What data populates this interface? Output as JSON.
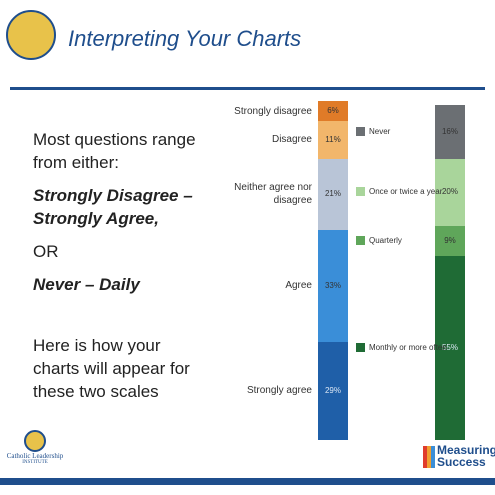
{
  "header": {
    "title": "Interpreting Your Charts"
  },
  "body": {
    "paragraphs": [
      "Most questions range from either:",
      "Strongly Disagree – Strongly Agree,",
      "OR",
      "Never – Daily",
      "Here is how your charts will appear for these two scales"
    ]
  },
  "logos": {
    "left": [
      "Catholic Leadership",
      "INSTITUTE"
    ],
    "right": [
      "Measuring",
      "Success"
    ]
  },
  "chart_data": [
    {
      "type": "stacked_bar",
      "legend": "side-labels",
      "series": [
        {
          "name": "Strongly disagree",
          "color": "#e07b28",
          "values": [
            6
          ],
          "value_labels": [
            "6%"
          ]
        },
        {
          "name": "Disagree",
          "color": "#f2b66b",
          "values": [
            11
          ],
          "value_labels": [
            "11%"
          ]
        },
        {
          "name": "Neither agree nor disagree",
          "color": "#b9c5d7",
          "values": [
            21
          ],
          "value_labels": [
            "21%"
          ]
        },
        {
          "name": "Agree",
          "color": "#3a8ed8",
          "values": [
            33
          ],
          "value_labels": [
            "33%"
          ]
        },
        {
          "name": "Strongly agree",
          "color": "#1f5fa8",
          "values": [
            29
          ],
          "value_labels": [
            "29%"
          ]
        }
      ]
    },
    {
      "type": "stacked_bar",
      "legend": "swatches",
      "series": [
        {
          "name": "Never",
          "color": "#6b6f73",
          "values": [
            16
          ],
          "value_labels": [
            "16%"
          ]
        },
        {
          "name": "Once or twice a year",
          "color": "#a9d59b",
          "values": [
            20
          ],
          "value_labels": [
            "20%"
          ]
        },
        {
          "name": "Quarterly",
          "color": "#5fa65a",
          "values": [
            9
          ],
          "value_labels": [
            "9%"
          ]
        },
        {
          "name": "Monthly or more often",
          "color": "#1f6b35",
          "values": [
            55
          ],
          "value_labels": [
            "55%"
          ]
        }
      ]
    }
  ]
}
